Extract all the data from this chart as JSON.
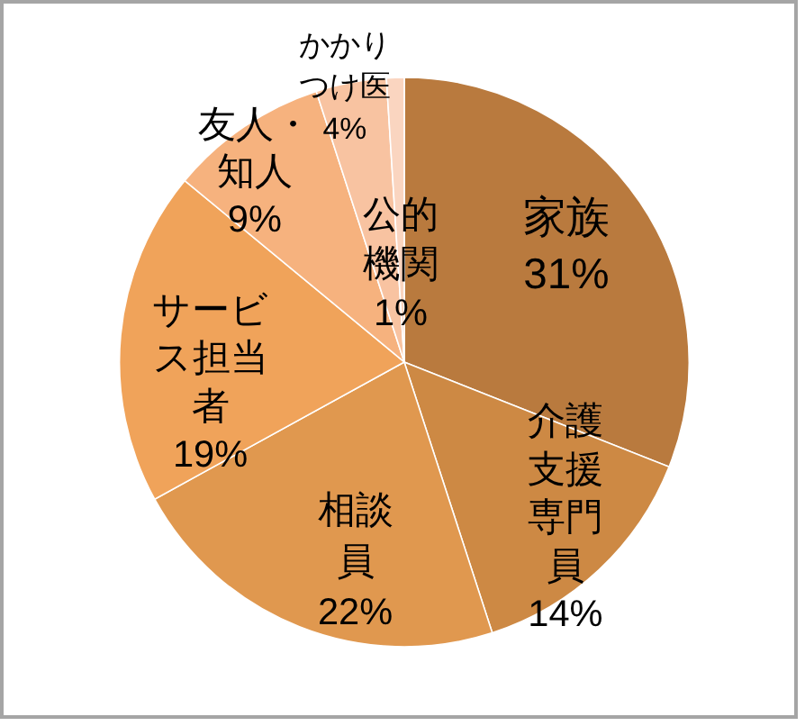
{
  "chart_data": {
    "type": "pie",
    "categories": [
      "家族",
      "介護支援専門員",
      "相談員",
      "サービス担当者",
      "友人・知人",
      "かかりつけ医",
      "公的機関"
    ],
    "values": [
      31,
      14,
      22,
      19,
      9,
      4,
      1
    ],
    "value_labels": [
      "31%",
      "14%",
      "22%",
      "19%",
      "9%",
      "4%",
      "1%"
    ],
    "colors": [
      "#b97a3e",
      "#cd8944",
      "#e0984f",
      "#f0a35a",
      "#f6b27e",
      "#f8c3a1",
      "#fad5c0"
    ],
    "legend": false
  }
}
